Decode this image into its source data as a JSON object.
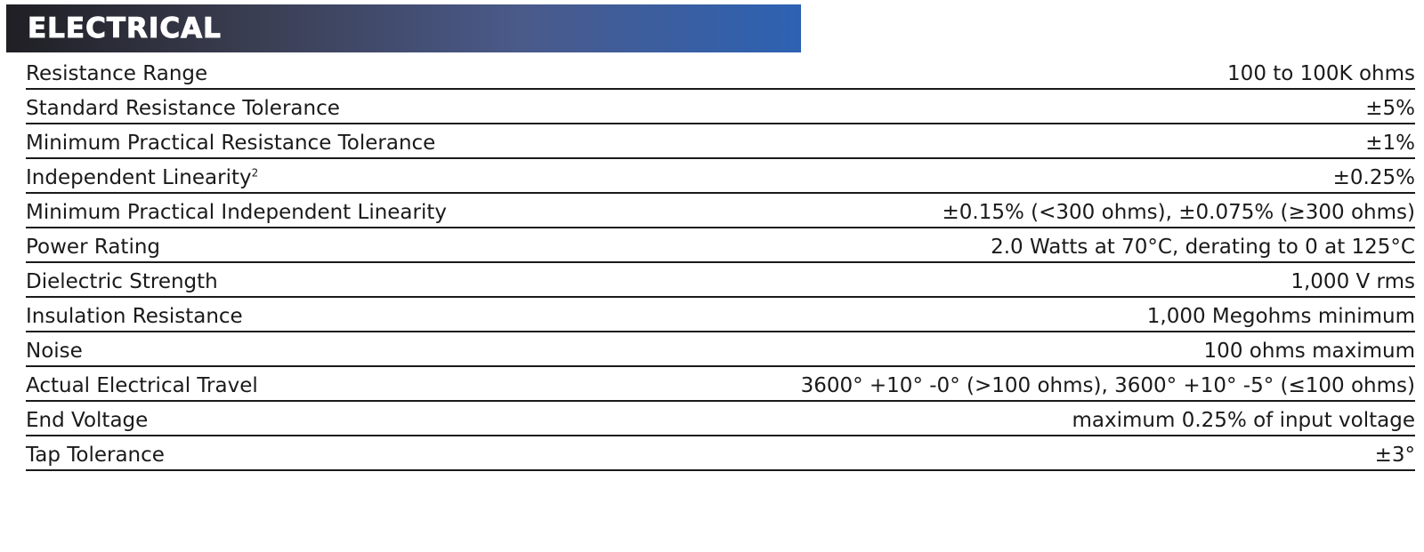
{
  "header": {
    "title": "ELECTRICAL"
  },
  "specs": [
    {
      "label": "Resistance Range",
      "sup": "",
      "value": "100 to 100K ohms"
    },
    {
      "label": "Standard Resistance Tolerance",
      "sup": "",
      "value": "±5%"
    },
    {
      "label": "Minimum Practical Resistance Tolerance",
      "sup": "",
      "value": "±1%"
    },
    {
      "label": "Independent Linearity",
      "sup": "2",
      "value": "±0.25%"
    },
    {
      "label": "Minimum Practical Independent Linearity",
      "sup": "",
      "value": "±0.15% (<300 ohms), ±0.075% (≥300 ohms)"
    },
    {
      "label": "Power Rating",
      "sup": "",
      "value": "2.0 Watts at 70°C, derating to 0 at 125°C"
    },
    {
      "label": "Dielectric Strength",
      "sup": "",
      "value": "1,000 V rms"
    },
    {
      "label": "Insulation Resistance",
      "sup": "",
      "value": "1,000 Megohms minimum"
    },
    {
      "label": "Noise",
      "sup": "",
      "value": "100 ohms maximum"
    },
    {
      "label": "Actual Electrical Travel",
      "sup": "",
      "value": "3600° +10° -0° (>100 ohms), 3600° +10° -5° (≤100 ohms)"
    },
    {
      "label": "End Voltage",
      "sup": "",
      "value": "maximum 0.25% of input voltage"
    },
    {
      "label": "Tap Tolerance",
      "sup": "",
      "value": "±3°"
    }
  ]
}
